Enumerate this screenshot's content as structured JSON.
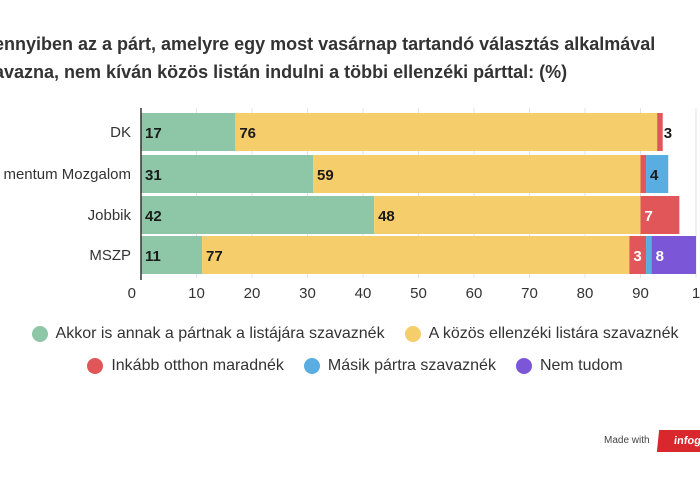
{
  "chart_data": {
    "type": "bar",
    "orientation": "horizontal",
    "stacked": true,
    "title_lines": [
      "ennyiben az a párt, amelyre egy most vasárnap tartandó választás alkalmával",
      "avazna, nem kíván közös listán indulni a többi ellenzéki párttal: (%)"
    ],
    "categories": [
      "DK",
      "mentum Mozgalom",
      "Jobbik",
      "MSZP"
    ],
    "series": [
      {
        "name": "Akkor is annak a pártnak a listájára szavaznék",
        "color": "#8ec7a8",
        "values": [
          17,
          31,
          42,
          11
        ],
        "labels": [
          "17",
          "31",
          "42",
          "11"
        ]
      },
      {
        "name": "A közös ellenzéki listára szavaznék",
        "color": "#f6cd6b",
        "values": [
          76,
          59,
          48,
          77
        ],
        "labels": [
          "76",
          "59",
          "48",
          "77"
        ]
      },
      {
        "name": "Inkább otthon maradnék",
        "color": "#e15759",
        "values": [
          1,
          1,
          7,
          3
        ],
        "labels": [
          "",
          "",
          "7",
          "3"
        ]
      },
      {
        "name": "Másik pártra szavaznék",
        "color": "#5aade0",
        "values": [
          0,
          4,
          0,
          1
        ],
        "labels": [
          "",
          "4",
          "",
          ""
        ]
      },
      {
        "name": "Nem tudom",
        "color": "#7b57d8",
        "values": [
          0,
          0,
          0,
          8
        ],
        "labels": [
          "",
          "",
          "",
          "8"
        ]
      }
    ],
    "clipped_labels": [
      "3",
      "",
      "",
      ""
    ],
    "xlim": [
      0,
      100
    ],
    "xticks": [
      "0",
      "10",
      "20",
      "30",
      "40",
      "50",
      "60",
      "70",
      "80",
      "90",
      "1"
    ],
    "grid": true,
    "legend_position": "bottom"
  },
  "footer": {
    "made_with": "Made with",
    "logo_text": "infog"
  }
}
